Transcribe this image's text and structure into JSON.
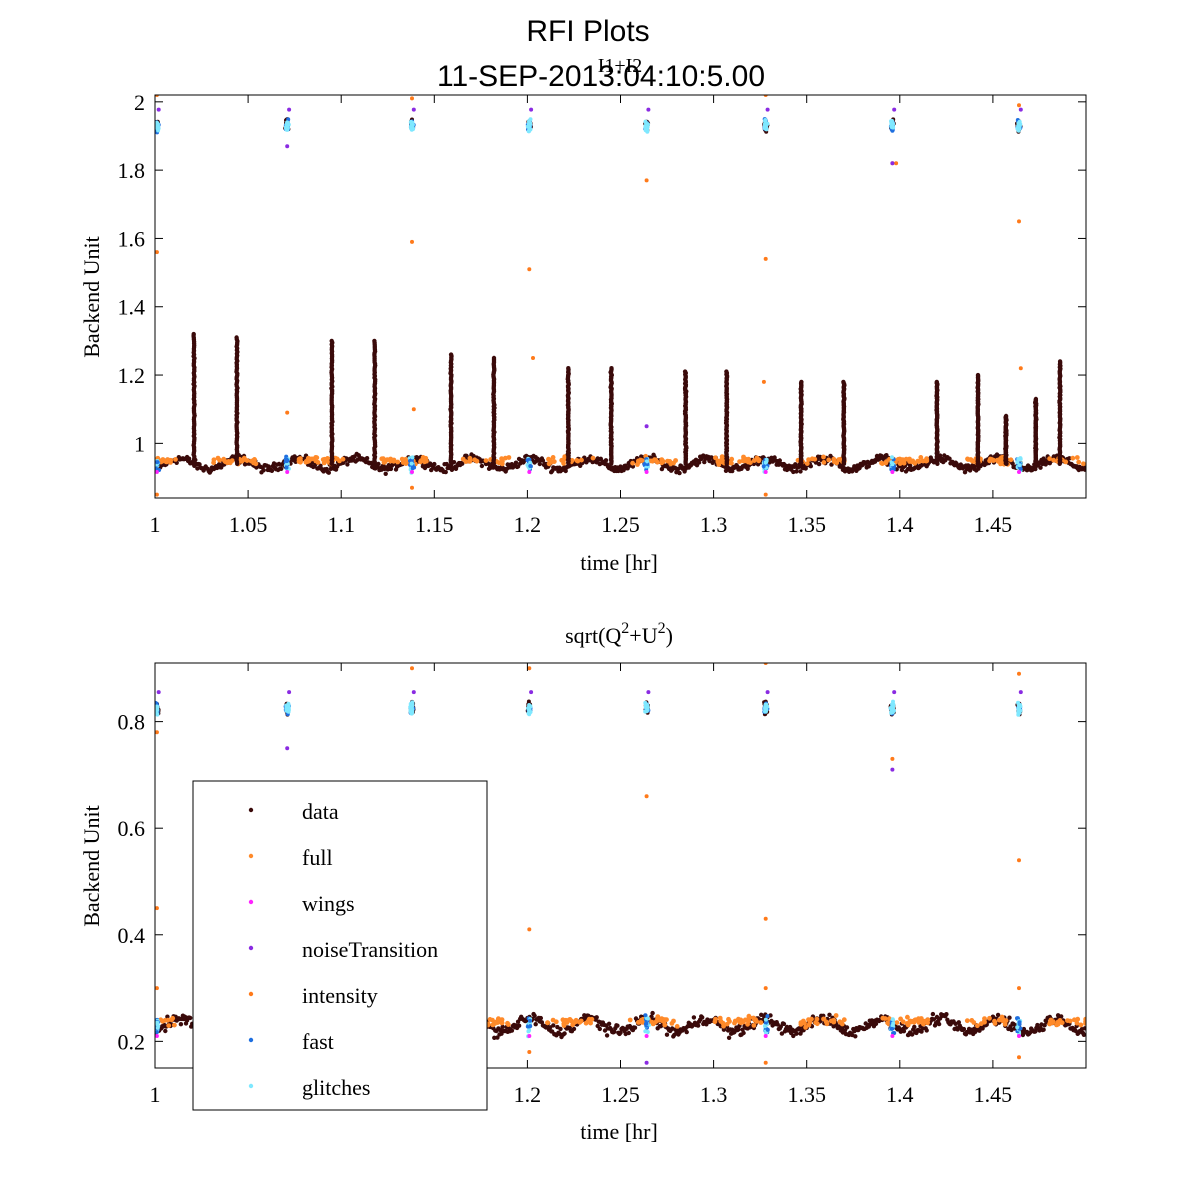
{
  "figure": {
    "title": "RFI Plots",
    "subtitle": "11-SEP-2013:04:10:5.00",
    "overlap_label": "I1+I2"
  },
  "colors": {
    "data": "#3a0a0a",
    "full": "#ff8a2a",
    "wings": "#ff22ff",
    "noiseTransition": "#8a2be2",
    "intensity": "#ff7a1a",
    "fast": "#1e6fe0",
    "glitches": "#7fe8ff"
  },
  "chart_data": [
    {
      "type": "scatter",
      "title": "",
      "xlabel": "time [hr]",
      "ylabel": "Backend Unit",
      "xlim": [
        1.0,
        1.5
      ],
      "ylim": [
        0.84,
        2.02
      ],
      "xticks": [
        1,
        1.05,
        1.1,
        1.15,
        1.2,
        1.25,
        1.3,
        1.35,
        1.4,
        1.45
      ],
      "xtick_labels": [
        "1",
        "1.05",
        "1.1",
        "1.15",
        "1.2",
        "1.25",
        "1.3",
        "1.35",
        "1.4",
        "1.45"
      ],
      "yticks": [
        1,
        1.2,
        1.4,
        1.6,
        1.8,
        2
      ],
      "ytick_labels": [
        "1",
        "1.2",
        "1.4",
        "1.6",
        "1.8",
        "2"
      ],
      "baseline": 0.94,
      "baseline_jitter": 0.03,
      "calibration_level": 1.93,
      "calibration_times": [
        1.001,
        1.071,
        1.138,
        1.201,
        1.264,
        1.328,
        1.396,
        1.464
      ],
      "spike_times": [
        1.021,
        1.044,
        1.095,
        1.118,
        1.159,
        1.182,
        1.222,
        1.245,
        1.285,
        1.307,
        1.347,
        1.37,
        1.42,
        1.442,
        1.457,
        1.473,
        1.486
      ],
      "spike_peaks": [
        1.32,
        1.31,
        1.3,
        1.3,
        1.26,
        1.25,
        1.22,
        1.22,
        1.21,
        1.21,
        1.18,
        1.18,
        1.18,
        1.2,
        1.08,
        1.13,
        1.24
      ],
      "intensity_outliers": [
        [
          1.001,
          1.56
        ],
        [
          1.001,
          2.02
        ],
        [
          1.071,
          1.09
        ],
        [
          1.138,
          1.59
        ],
        [
          1.138,
          2.01
        ],
        [
          1.139,
          1.1
        ],
        [
          1.201,
          1.51
        ],
        [
          1.203,
          1.25
        ],
        [
          1.264,
          1.77
        ],
        [
          1.328,
          1.54
        ],
        [
          1.328,
          2.02
        ],
        [
          1.327,
          1.18
        ],
        [
          1.396,
          1.82
        ],
        [
          1.398,
          1.82
        ],
        [
          1.464,
          1.65
        ],
        [
          1.464,
          1.99
        ],
        [
          1.465,
          1.22
        ],
        [
          1.001,
          0.85
        ],
        [
          1.138,
          0.87
        ],
        [
          1.328,
          0.85
        ]
      ],
      "noise_outliers": [
        [
          1.071,
          1.87
        ],
        [
          1.396,
          1.82
        ],
        [
          1.264,
          1.05
        ]
      ]
    },
    {
      "type": "scatter",
      "title": "sqrt(Q²+U²)",
      "xlabel": "time [hr]",
      "ylabel": "Backend Unit",
      "xlim": [
        1.0,
        1.5
      ],
      "ylim": [
        0.15,
        0.91
      ],
      "xticks": [
        1,
        1.05,
        1.1,
        1.15,
        1.2,
        1.25,
        1.3,
        1.35,
        1.4,
        1.45
      ],
      "xtick_labels": [
        "1",
        "1.05",
        "1.1",
        "1.15",
        "1.2",
        "1.25",
        "1.3",
        "1.35",
        "1.4",
        "1.45"
      ],
      "yticks": [
        0.2,
        0.4,
        0.6,
        0.8
      ],
      "ytick_labels": [
        "0.2",
        "0.4",
        "0.6",
        "0.8"
      ],
      "baseline": 0.23,
      "baseline_jitter": 0.025,
      "calibration_level": 0.825,
      "calibration_times": [
        1.001,
        1.071,
        1.138,
        1.201,
        1.264,
        1.328,
        1.396,
        1.464
      ],
      "spike_times": [],
      "spike_peaks": [],
      "intensity_outliers": [
        [
          1.001,
          0.45
        ],
        [
          1.001,
          0.3
        ],
        [
          1.001,
          0.78
        ],
        [
          1.138,
          0.9
        ],
        [
          1.201,
          0.41
        ],
        [
          1.201,
          0.9
        ],
        [
          1.264,
          0.66
        ],
        [
          1.328,
          0.43
        ],
        [
          1.328,
          0.91
        ],
        [
          1.328,
          0.3
        ],
        [
          1.328,
          0.16
        ],
        [
          1.396,
          0.73
        ],
        [
          1.464,
          0.54
        ],
        [
          1.464,
          0.89
        ],
        [
          1.464,
          0.3
        ],
        [
          1.464,
          0.17
        ],
        [
          1.201,
          0.18
        ]
      ],
      "noise_outliers": [
        [
          1.071,
          0.75
        ],
        [
          1.396,
          0.71
        ],
        [
          1.264,
          0.16
        ]
      ],
      "legend": {
        "position": "lower-left",
        "entries": [
          "data",
          "full",
          "wings",
          "noiseTransition",
          "intensity",
          "fast",
          "glitches"
        ]
      }
    }
  ]
}
